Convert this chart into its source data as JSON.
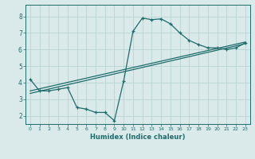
{
  "xlabel": "Humidex (Indice chaleur)",
  "ylabel": "",
  "bg_color": "#daeaea",
  "grid_color": "#b8d4d4",
  "line_color": "#1e6b6b",
  "xlim": [
    -0.5,
    23.5
  ],
  "ylim": [
    1.5,
    8.7
  ],
  "xticks": [
    0,
    1,
    2,
    3,
    4,
    5,
    6,
    7,
    8,
    9,
    10,
    11,
    12,
    13,
    14,
    15,
    16,
    17,
    18,
    19,
    20,
    21,
    22,
    23
  ],
  "yticks": [
    2,
    3,
    4,
    5,
    6,
    7,
    8
  ],
  "curve1_x": [
    0,
    1,
    2,
    3,
    4,
    5,
    6,
    7,
    8,
    9,
    10,
    11,
    12,
    13,
    14,
    15,
    16,
    17,
    18,
    19,
    20,
    21,
    22,
    23
  ],
  "curve1_y": [
    4.2,
    3.5,
    3.5,
    3.6,
    3.7,
    2.5,
    2.4,
    2.2,
    2.2,
    1.7,
    4.1,
    7.1,
    7.9,
    7.8,
    7.85,
    7.55,
    7.0,
    6.55,
    6.3,
    6.1,
    6.1,
    6.0,
    6.1,
    6.4
  ],
  "line1_x": [
    0,
    23
  ],
  "line1_y": [
    3.5,
    6.45
  ],
  "line2_x": [
    0,
    23
  ],
  "line2_y": [
    3.35,
    6.35
  ]
}
